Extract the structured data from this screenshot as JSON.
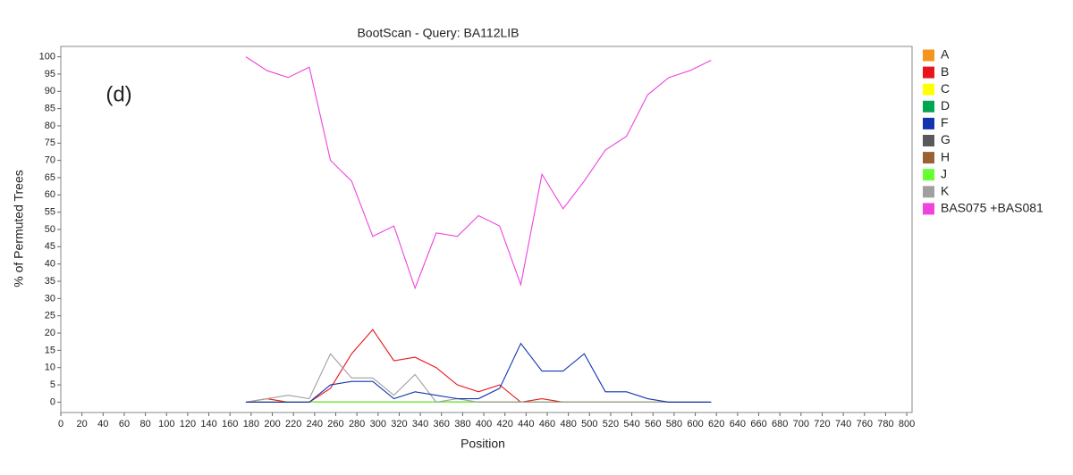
{
  "chart_data": {
    "type": "line",
    "title": "BootScan - Query: BA112LIB",
    "annotation": "(d)",
    "x_label": "Position",
    "y_label": "% of Permuted Trees",
    "x": [
      175,
      195,
      215,
      235,
      255,
      275,
      295,
      315,
      335,
      355,
      375,
      395,
      415,
      435,
      455,
      475,
      495,
      515,
      535,
      555,
      575,
      595,
      615
    ],
    "series": [
      {
        "name": "A",
        "color": "#f7941d",
        "values": [
          0,
          0,
          0,
          0,
          0,
          0,
          0,
          0,
          0,
          0,
          0,
          0,
          0,
          0,
          0,
          0,
          0,
          0,
          0,
          0,
          0,
          0,
          0
        ]
      },
      {
        "name": "B",
        "color": "#e8141b",
        "values": [
          0,
          1,
          0,
          0,
          4,
          14,
          21,
          12,
          13,
          10,
          5,
          3,
          5,
          0,
          1,
          0,
          null,
          null,
          null,
          null,
          null,
          null,
          null
        ]
      },
      {
        "name": "C",
        "color": "#ffff00",
        "values": [
          0,
          0,
          0,
          0,
          0,
          0,
          0,
          0,
          0,
          0,
          0,
          0,
          0,
          0,
          0,
          0,
          0,
          0,
          0,
          0,
          0,
          0,
          0
        ]
      },
      {
        "name": "D",
        "color": "#00a651",
        "values": [
          0,
          0,
          0,
          0,
          0,
          0,
          0,
          0,
          0,
          0,
          0,
          0,
          0,
          0,
          0,
          0,
          0,
          0,
          0,
          0,
          0,
          0,
          0
        ]
      },
      {
        "name": "G",
        "color": "#58595b",
        "values": [
          0,
          0,
          0,
          0,
          0,
          0,
          0,
          0,
          0,
          0,
          0,
          0,
          0,
          0,
          0,
          0,
          0,
          0,
          0,
          0,
          0,
          0,
          0
        ]
      },
      {
        "name": "H",
        "color": "#9a6132",
        "values": [
          0,
          0,
          0,
          0,
          0,
          0,
          0,
          0,
          0,
          0,
          0,
          0,
          0,
          0,
          0,
          0,
          0,
          0,
          0,
          0,
          0,
          0,
          0
        ]
      },
      {
        "name": "J",
        "color": "#66ff33",
        "values": [
          0,
          0,
          0,
          0,
          0,
          0,
          0,
          0,
          0,
          0,
          0,
          0,
          0,
          0,
          0,
          0,
          0,
          0,
          0,
          0,
          0,
          0,
          0
        ]
      },
      {
        "name": "K",
        "color": "#a0a0a0",
        "values": [
          0,
          1,
          2,
          1,
          14,
          7,
          7,
          2,
          8,
          0,
          1,
          0,
          0,
          0,
          0,
          0,
          0,
          0,
          0,
          0,
          0,
          0,
          0
        ]
      },
      {
        "name": "F",
        "color": "#1234b0",
        "values": [
          0,
          0,
          0,
          0,
          5,
          6,
          6,
          1,
          3,
          2,
          1,
          1,
          4,
          17,
          9,
          9,
          14,
          3,
          3,
          1,
          0,
          0,
          0
        ]
      },
      {
        "name": "BAS075 +BAS081",
        "color": "#ee44dd",
        "values": [
          100,
          96,
          94,
          97,
          70,
          64,
          48,
          51,
          33,
          49,
          48,
          54,
          51,
          34,
          66,
          56,
          64,
          73,
          77,
          89,
          94,
          96,
          99
        ]
      }
    ],
    "legend_order": [
      "A",
      "B",
      "C",
      "D",
      "F",
      "G",
      "H",
      "J",
      "K",
      "BAS075 +BAS081"
    ],
    "xlim": [
      0,
      805
    ],
    "ylim": [
      -3,
      103
    ],
    "xticks": [
      0,
      20,
      40,
      60,
      80,
      100,
      120,
      140,
      160,
      180,
      200,
      220,
      240,
      260,
      280,
      300,
      320,
      340,
      360,
      380,
      400,
      420,
      440,
      460,
      480,
      500,
      520,
      540,
      560,
      580,
      600,
      620,
      640,
      660,
      680,
      700,
      720,
      740,
      760,
      780,
      800
    ],
    "yticks": [
      0,
      5,
      10,
      15,
      20,
      25,
      30,
      35,
      40,
      45,
      50,
      55,
      60,
      65,
      70,
      75,
      80,
      85,
      90,
      95,
      100
    ],
    "legend": "right"
  }
}
